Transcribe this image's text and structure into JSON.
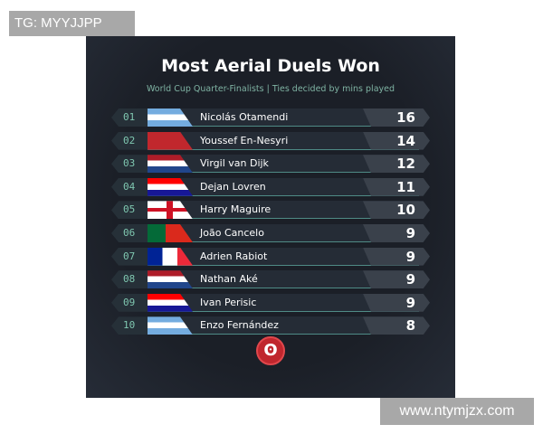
{
  "watermark_top": "TG: MYYJJPP",
  "watermark_bottom": "www.ntymjzx.com",
  "title": "Most Aerial Duels Won",
  "subtitle": "World Cup Quarter-Finalists | Ties decided by mins played",
  "rows": [
    {
      "rank": "01",
      "name": "Nicolás Otamendi",
      "value": "16",
      "flag": "argentina"
    },
    {
      "rank": "02",
      "name": "Youssef En-Nesyri",
      "value": "14",
      "flag": "morocco"
    },
    {
      "rank": "03",
      "name": "Virgil van Dijk",
      "value": "12",
      "flag": "netherlands"
    },
    {
      "rank": "04",
      "name": "Dejan Lovren",
      "value": "11",
      "flag": "croatia"
    },
    {
      "rank": "05",
      "name": "Harry Maguire",
      "value": "10",
      "flag": "england"
    },
    {
      "rank": "06",
      "name": "João Cancelo",
      "value": "9",
      "flag": "portugal"
    },
    {
      "rank": "07",
      "name": "Adrien Rabiot",
      "value": "9",
      "flag": "france"
    },
    {
      "rank": "08",
      "name": "Nathan Aké",
      "value": "9",
      "flag": "netherlands"
    },
    {
      "rank": "09",
      "name": "Ivan Perisic",
      "value": "9",
      "flag": "croatia"
    },
    {
      "rank": "10",
      "name": "Enzo Fernández",
      "value": "8",
      "flag": "argentina"
    }
  ]
}
